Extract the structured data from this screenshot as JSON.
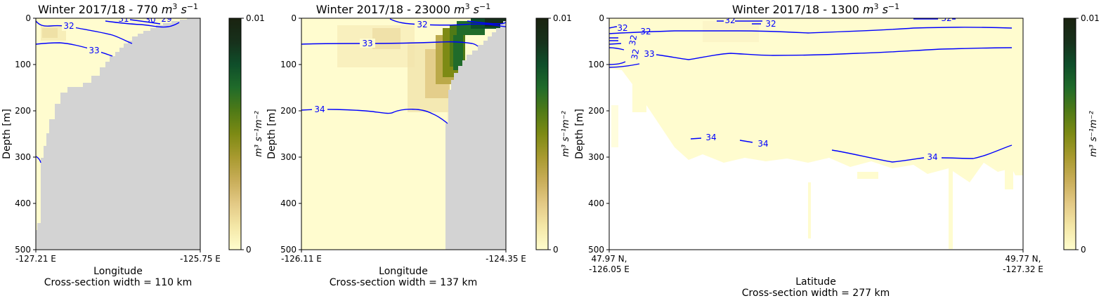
{
  "chart_data": [
    {
      "type": "heatmap",
      "title_main": "Winter 2017/18 - 770 ",
      "title_unit": "m",
      "title_unit_sup1": "3",
      "title_unit_s": " s",
      "title_unit_sup2": "−1",
      "xlabel": "Longitude",
      "xlabel2": "Cross-section width = 110 km",
      "ylabel": "Depth [m]",
      "ylim": [
        500,
        0
      ],
      "yticks": [
        0,
        100,
        200,
        300,
        400,
        500
      ],
      "ytick_labels": [
        "0",
        "100",
        "200",
        "300",
        "400",
        "500"
      ],
      "xtick_labels": [
        [
          "-127.21 E"
        ],
        [
          "-125.75 E"
        ]
      ],
      "colorbar": {
        "min_label": "0",
        "max_label": "0.01",
        "label": "m³ s⁻¹m⁻²",
        "colormap": "speed (cmocean)"
      },
      "flux_hotspot": {
        "depth_range": [
          0,
          60
        ],
        "intensity": 0.18
      },
      "contours": [
        {
          "value": 29,
          "label": "29"
        },
        {
          "value": 30,
          "label": "30"
        },
        {
          "value": 31,
          "label": "31"
        },
        {
          "value": 32,
          "label": "32"
        },
        {
          "value": 33,
          "label": "33"
        }
      ],
      "contour_color": "#0000ff"
    },
    {
      "type": "heatmap",
      "title_main": "Winter 2017/18 - 23000 ",
      "title_unit": "m",
      "title_unit_sup1": "3",
      "title_unit_s": " s",
      "title_unit_sup2": "−1",
      "xlabel": "Longitude",
      "xlabel2": "Cross-section width = 137 km",
      "ylabel": "Depth [m]",
      "ylim": [
        500,
        0
      ],
      "yticks": [
        0,
        100,
        200,
        300,
        400,
        500
      ],
      "ytick_labels": [
        "0",
        "100",
        "200",
        "300",
        "400",
        "500"
      ],
      "xtick_labels": [
        [
          "-126.11 E"
        ],
        [
          "-124.35 E"
        ]
      ],
      "colorbar": {
        "min_label": "0",
        "max_label": "0.01",
        "label": "m³ s⁻¹m⁻²",
        "colormap": "speed (cmocean)"
      },
      "flux_hotspot": {
        "depth_range": [
          0,
          160
        ],
        "intensity": 1.0
      },
      "contours": [
        {
          "value": 32,
          "label": "32"
        },
        {
          "value": 33,
          "label": "33"
        },
        {
          "value": 34,
          "label": "34"
        }
      ],
      "contour_color": "#0000ff"
    },
    {
      "type": "heatmap",
      "title_main": "Winter 2017/18 - 1300 ",
      "title_unit": "m",
      "title_unit_sup1": "3",
      "title_unit_s": " s",
      "title_unit_sup2": "−1",
      "xlabel": "Latitude",
      "xlabel2": "Cross-section width = 277 km",
      "ylabel": "Depth [m]",
      "ylim": [
        500,
        0
      ],
      "yticks": [
        0,
        100,
        200,
        300,
        400,
        500
      ],
      "ytick_labels": [
        "0",
        "100",
        "200",
        "300",
        "400",
        "500"
      ],
      "xtick_labels": [
        [
          "47.97 N,",
          "-126.05 E"
        ],
        [
          "49.77 N,",
          "-127.32 E"
        ]
      ],
      "colorbar": {
        "min_label": "0",
        "max_label": "0.01",
        "label": "m³ s⁻¹m⁻²",
        "colormap": "speed (cmocean)"
      },
      "flux_hotspot": {
        "depth_range": [
          0,
          350
        ],
        "intensity": 0.12
      },
      "contours": [
        {
          "value": 32,
          "label": "32"
        },
        {
          "value": 33,
          "label": "33"
        },
        {
          "value": 34,
          "label": "34"
        }
      ],
      "contour_color": "#0000ff"
    }
  ],
  "colors": {
    "land": "#d3d3d3",
    "background": "#fffccf",
    "contour": "#0000ff",
    "cmap": [
      "#fffdcd",
      "#f4e7a7",
      "#e3c985",
      "#c8ad58",
      "#a89a2f",
      "#7d8a14",
      "#4f7a16",
      "#206b2a",
      "#0f4e2a",
      "#17301b",
      "#1a2310"
    ]
  }
}
